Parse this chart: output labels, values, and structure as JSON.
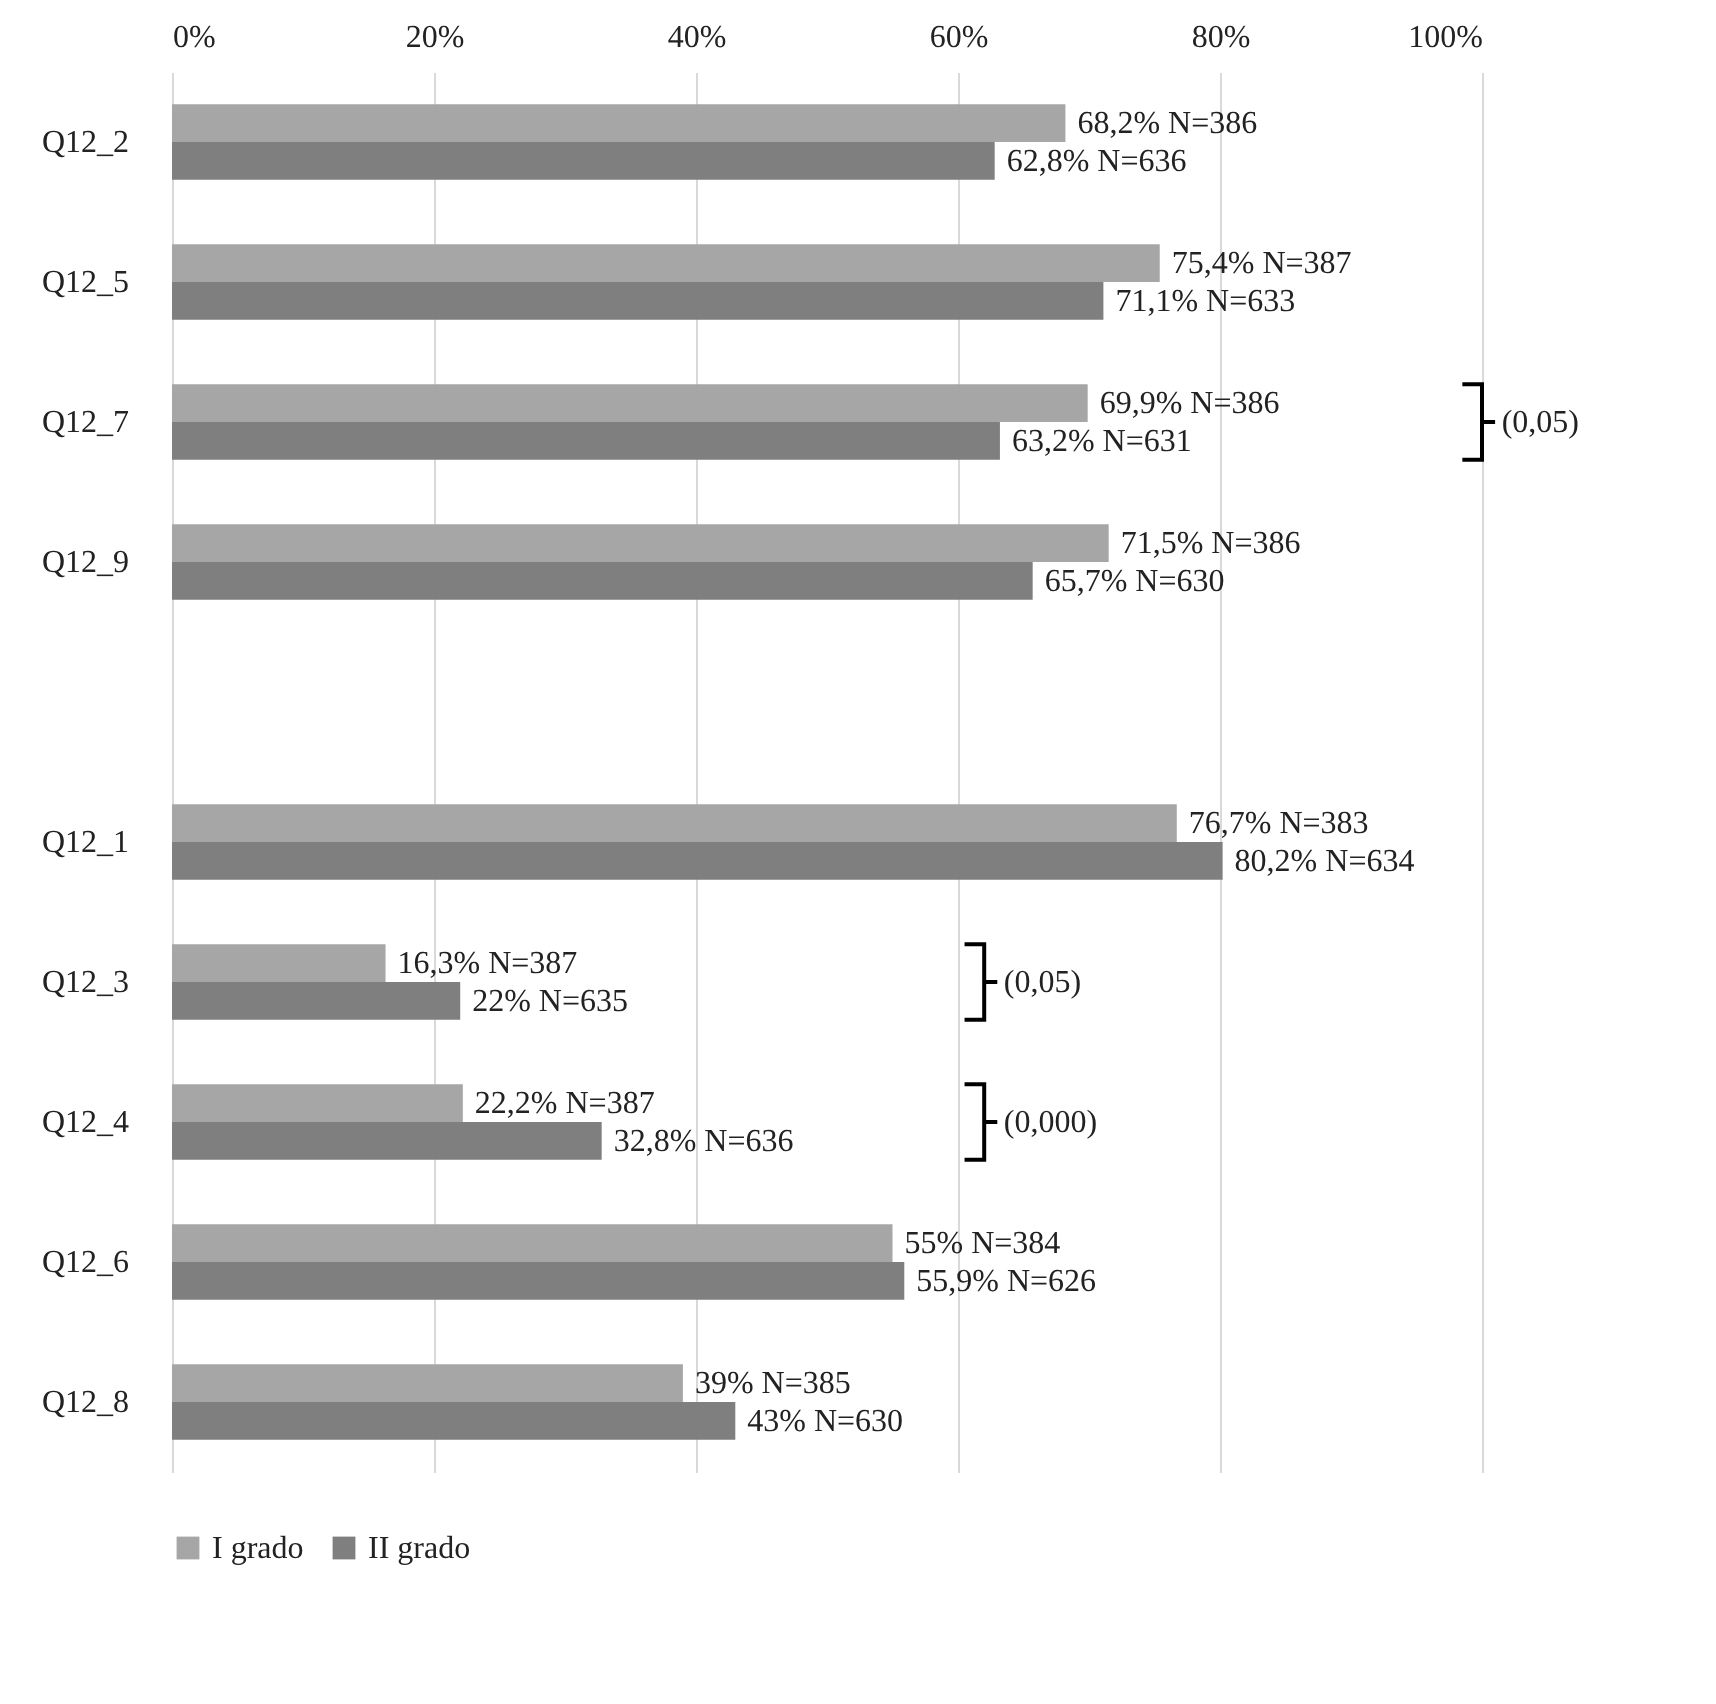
{
  "chart_data": {
    "type": "bar",
    "orientation": "horizontal",
    "categories": [
      "Q12_2",
      "Q12_5",
      "Q12_7",
      "Q12_9",
      null,
      "Q12_1",
      "Q12_3",
      "Q12_4",
      "Q12_6",
      "Q12_8"
    ],
    "series": [
      {
        "name": "I grado",
        "color": "#a6a6a6",
        "values": [
          68.2,
          75.4,
          69.9,
          71.5,
          null,
          76.7,
          16.3,
          22.2,
          55,
          39
        ],
        "value_labels": [
          "68,2% N=386",
          "75,4% N=387",
          "69,9% N=386",
          "71,5% N=386",
          null,
          "76,7% N=383",
          "16,3% N=387",
          "22,2% N=387",
          "55% N=384",
          "39% N=385"
        ]
      },
      {
        "name": "II grado",
        "color": "#7f7f7f",
        "values": [
          62.8,
          71.1,
          63.2,
          65.7,
          null,
          80.2,
          22,
          32.8,
          55.9,
          43
        ],
        "value_labels": [
          "62,8% N=636",
          "71,1% N=633",
          "63,2% N=631",
          "65,7% N=630",
          null,
          "80,2% N=634",
          "22% N=635",
          "32,8% N=636",
          "55,9% N=626",
          "43% N=630"
        ]
      }
    ],
    "xlim": [
      0,
      100
    ],
    "xticks": [
      {
        "value": 0,
        "label": "0%"
      },
      {
        "value": 20,
        "label": "20%"
      },
      {
        "value": 40,
        "label": "40%"
      },
      {
        "value": 60,
        "label": "60%"
      },
      {
        "value": 80,
        "label": "80%"
      },
      {
        "value": 100,
        "label": "100%"
      }
    ],
    "grid": "x",
    "legend": "bottom",
    "annotations": [
      "(0,05)",
      "(0,05)",
      "(0,000)"
    ]
  }
}
